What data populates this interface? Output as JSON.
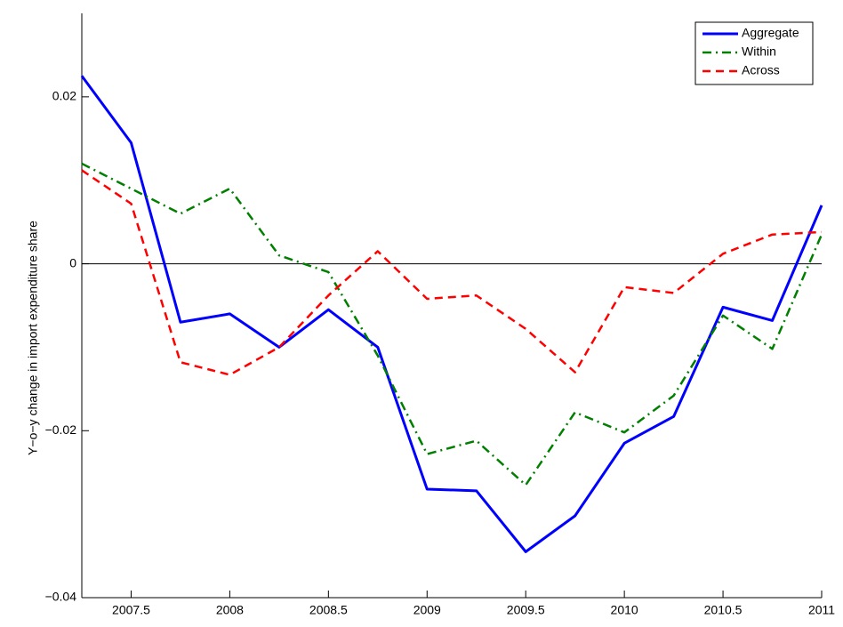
{
  "chart_data": {
    "type": "line",
    "ylabel": "Y−o−y change in import expenditure share",
    "x": [
      2007.25,
      2007.5,
      2007.75,
      2008,
      2008.25,
      2008.5,
      2008.75,
      2009,
      2009.25,
      2009.5,
      2009.75,
      2010,
      2010.25,
      2010.5,
      2010.75,
      2011
    ],
    "series": [
      {
        "name": "Aggregate",
        "color": "#0000ff",
        "linestyle": "solid",
        "values": [
          0.0225,
          0.0145,
          -0.007,
          -0.006,
          -0.01,
          -0.0055,
          -0.01,
          -0.027,
          -0.0272,
          -0.0345,
          -0.0302,
          -0.0215,
          -0.0183,
          -0.0052,
          -0.0068,
          0.007
        ]
      },
      {
        "name": "Within",
        "color": "#007f00",
        "linestyle": "dashdot",
        "values": [
          0.012,
          0.009,
          0.006,
          0.009,
          0.001,
          -0.001,
          -0.011,
          -0.0228,
          -0.0212,
          -0.0265,
          -0.0178,
          -0.0202,
          -0.0158,
          -0.0062,
          -0.0102,
          0.0035
        ]
      },
      {
        "name": "Across",
        "color": "#ff0000",
        "linestyle": "dashed",
        "values": [
          0.0112,
          0.0072,
          -0.0118,
          -0.0133,
          -0.01,
          -0.0038,
          0.0015,
          -0.0042,
          -0.0038,
          -0.0078,
          -0.013,
          -0.0028,
          -0.0035,
          0.0012,
          0.0035,
          0.0038
        ]
      }
    ],
    "xlim": [
      2007.25,
      2011
    ],
    "xticks": [
      2007.5,
      2008,
      2008.5,
      2009,
      2009.5,
      2010,
      2010.5,
      2011
    ],
    "ylim": [
      -0.04,
      0.03
    ],
    "yticks": [
      {
        "value": -0.04,
        "label": "−0.04"
      },
      {
        "value": -0.02,
        "label": "−0.02"
      },
      0,
      0.02
    ],
    "zero_line": true,
    "legend": "upper right"
  }
}
